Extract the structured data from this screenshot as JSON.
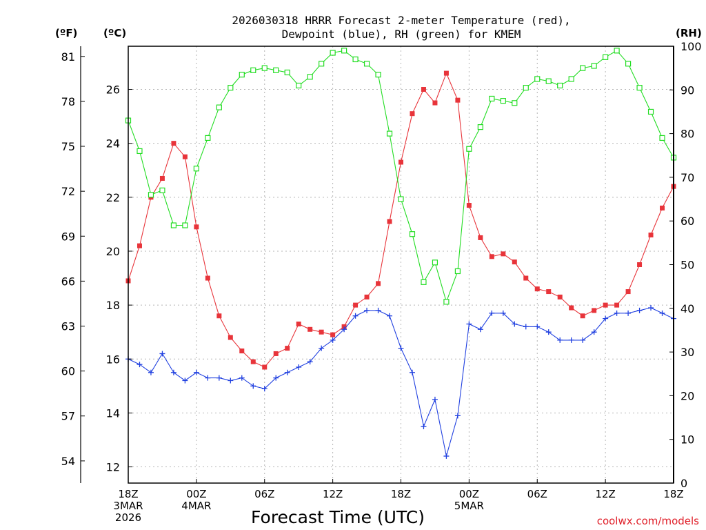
{
  "chart_data": {
    "type": "line",
    "title_line1": "2026030318 HRRR Forecast 2-meter Temperature (red),",
    "title_line2": "Dewpoint (blue), RH (green) for KMEM",
    "xlabel": "Forecast Time (UTC)",
    "credit": "coolwx.com/models",
    "unit_left_outer": "(ºF)",
    "unit_left_inner": "(ºC)",
    "unit_right": "(RH)",
    "x_range_hours": [
      0,
      48
    ],
    "y_celsius_range": [
      11.4,
      27.6
    ],
    "y_rh_range": [
      0,
      100
    ],
    "celsius_ticks": [
      "12",
      "14",
      "16",
      "18",
      "20",
      "22",
      "24",
      "26"
    ],
    "fahrenheit_ticks": [
      "54",
      "57",
      "60",
      "63",
      "66",
      "69",
      "72",
      "75",
      "78",
      "81"
    ],
    "rh_ticks": [
      "0",
      "10",
      "20",
      "30",
      "40",
      "50",
      "60",
      "70",
      "80",
      "90",
      "100"
    ],
    "x_ticks": [
      {
        "hour": 0,
        "lines": [
          "18Z",
          "3MAR",
          "2026"
        ]
      },
      {
        "hour": 6,
        "lines": [
          "00Z",
          "4MAR"
        ]
      },
      {
        "hour": 12,
        "lines": [
          "06Z"
        ]
      },
      {
        "hour": 18,
        "lines": [
          "12Z"
        ]
      },
      {
        "hour": 24,
        "lines": [
          "18Z"
        ]
      },
      {
        "hour": 30,
        "lines": [
          "00Z",
          "5MAR"
        ]
      },
      {
        "hour": 36,
        "lines": [
          "06Z"
        ]
      },
      {
        "hour": 42,
        "lines": [
          "12Z"
        ]
      },
      {
        "hour": 48,
        "lines": [
          "18Z"
        ]
      }
    ],
    "series": [
      {
        "name": "2-meter Temperature (°C)",
        "color": "#e8343a",
        "marker": "filled-square",
        "axis": "celsius",
        "values": [
          18.9,
          20.2,
          22.0,
          22.7,
          24.0,
          23.5,
          20.9,
          19.0,
          17.6,
          16.8,
          16.3,
          15.9,
          15.7,
          16.2,
          16.4,
          17.3,
          17.1,
          17.0,
          16.9,
          17.2,
          18.0,
          18.3,
          18.8,
          21.1,
          23.3,
          25.1,
          26.0,
          25.5,
          26.6,
          25.6,
          21.7,
          20.5,
          19.8,
          19.9,
          19.6,
          19.0,
          18.6,
          18.5,
          18.3,
          17.9,
          17.6,
          17.8,
          18.0,
          18.0,
          18.5,
          19.5,
          20.6,
          21.6,
          22.4
        ]
      },
      {
        "name": "Dewpoint (°C)",
        "color": "#2040e0",
        "marker": "plus",
        "axis": "celsius",
        "values": [
          16.0,
          15.8,
          15.5,
          16.2,
          15.5,
          15.2,
          15.5,
          15.3,
          15.3,
          15.2,
          15.3,
          15.0,
          14.9,
          15.3,
          15.5,
          15.7,
          15.9,
          16.4,
          16.7,
          17.1,
          17.6,
          17.8,
          17.8,
          17.6,
          16.4,
          15.5,
          13.5,
          14.5,
          12.4,
          13.9,
          17.3,
          17.1,
          17.7,
          17.7,
          17.3,
          17.2,
          17.2,
          17.0,
          16.7,
          16.7,
          16.7,
          17.0,
          17.5,
          17.7,
          17.7,
          17.8,
          17.9,
          17.7,
          17.5
        ]
      },
      {
        "name": "RH (%)",
        "color": "#22dd22",
        "marker": "hollow-square",
        "axis": "rh",
        "values": [
          83,
          76,
          66,
          67,
          59,
          59,
          72,
          79,
          86,
          90.5,
          93.5,
          94.5,
          95,
          94.5,
          94,
          91,
          93,
          96,
          98.5,
          99,
          97,
          96,
          93.5,
          80,
          65,
          57,
          46,
          50.5,
          41.5,
          48.5,
          76.5,
          81.5,
          88,
          87.5,
          87,
          90.5,
          92.5,
          92,
          91,
          92.5,
          95,
          95.5,
          97.5,
          99,
          96,
          90.5,
          85,
          79,
          74.5
        ]
      }
    ]
  }
}
